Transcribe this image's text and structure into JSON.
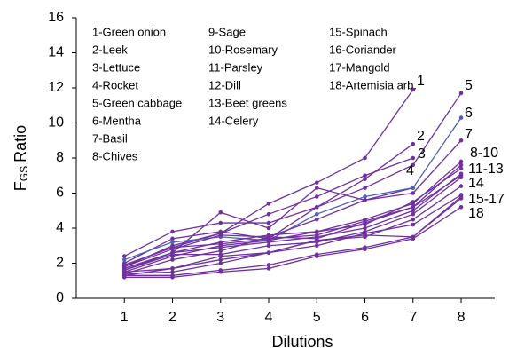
{
  "chart_data": {
    "type": "line",
    "xlabel": "Dilutions",
    "ylabel": "F",
    "ylabel_sub": "GS",
    "ylabel_rest": "Ratio",
    "x": [
      1,
      2,
      3,
      4,
      5,
      6,
      7,
      8
    ],
    "xlim": [
      0,
      8.7
    ],
    "xticks": [
      1,
      2,
      3,
      4,
      5,
      6,
      7,
      8
    ],
    "ylim": [
      0,
      16
    ],
    "yticks": [
      0,
      2,
      4,
      6,
      8,
      10,
      12,
      14,
      16
    ],
    "grid": false,
    "series": [
      {
        "name": "1-Green onion",
        "color": "#7030a0",
        "values": [
          1.8,
          3.0,
          3.7,
          5.4,
          6.6,
          8.0,
          11.9,
          null
        ]
      },
      {
        "name": "2-Leek",
        "color": "#7030a0",
        "values": [
          2.0,
          3.4,
          3.8,
          3.4,
          5.2,
          6.8,
          8.8,
          null
        ]
      },
      {
        "name": "3-Lettuce",
        "color": "#7030a0",
        "values": [
          1.9,
          2.9,
          3.7,
          4.8,
          5.8,
          7.0,
          8.0,
          null
        ]
      },
      {
        "name": "4-Rocket",
        "color": "#7030a0",
        "values": [
          1.7,
          2.6,
          4.9,
          4.0,
          6.3,
          5.6,
          6.3,
          null
        ]
      },
      {
        "name": "5-Green cabbage",
        "color": "#7030a0",
        "values": [
          2.4,
          3.8,
          4.3,
          4.3,
          5.2,
          6.3,
          7.6,
          11.7
        ]
      },
      {
        "name": "6-Mentha",
        "color": "#4f5fb8",
        "values": [
          2.2,
          3.2,
          3.5,
          3.3,
          4.8,
          5.8,
          6.3,
          10.3
        ]
      },
      {
        "name": "7-Basil",
        "color": "#7030a0",
        "values": [
          1.8,
          2.8,
          3.6,
          3.5,
          4.5,
          5.6,
          6.0,
          9.0
        ]
      },
      {
        "name": "8-Chives",
        "color": "#7030a0",
        "values": [
          1.6,
          2.6,
          3.2,
          3.6,
          3.8,
          4.5,
          5.4,
          7.8
        ]
      },
      {
        "name": "9-Sage",
        "color": "#7030a0",
        "values": [
          1.9,
          2.9,
          3.1,
          3.4,
          3.6,
          4.4,
          5.2,
          7.6
        ]
      },
      {
        "name": "10-Rosemary",
        "color": "#7030a0",
        "values": [
          1.5,
          2.4,
          3.0,
          3.3,
          3.8,
          4.2,
          5.5,
          7.4
        ]
      },
      {
        "name": "11-Parsley",
        "color": "#7030a0",
        "values": [
          1.7,
          2.6,
          2.9,
          3.2,
          3.5,
          4.0,
          5.0,
          7.1
        ]
      },
      {
        "name": "12-Dill",
        "color": "#7030a0",
        "values": [
          1.4,
          2.2,
          2.7,
          3.5,
          3.4,
          4.3,
          5.2,
          7.0
        ]
      },
      {
        "name": "13-Beet greens",
        "color": "#7030a0",
        "values": [
          1.6,
          2.5,
          2.5,
          3.0,
          3.2,
          3.8,
          4.8,
          6.9
        ]
      },
      {
        "name": "14-Celery",
        "color": "#7030a0",
        "values": [
          1.5,
          1.7,
          2.4,
          2.6,
          3.3,
          3.5,
          4.5,
          6.4
        ]
      },
      {
        "name": "15-Spinach",
        "color": "#7030a0",
        "values": [
          1.3,
          1.7,
          2.2,
          2.6,
          3.0,
          3.7,
          4.2,
          5.9
        ]
      },
      {
        "name": "16-Coriander",
        "color": "#7030a0",
        "values": [
          1.4,
          1.5,
          2.0,
          2.6,
          3.3,
          3.6,
          3.5,
          5.7
        ]
      },
      {
        "name": "17-Mangold",
        "color": "#7030a0",
        "values": [
          1.3,
          1.3,
          1.6,
          1.9,
          2.5,
          2.9,
          3.5,
          5.8
        ]
      },
      {
        "name": "18-Artemisia arb.",
        "color": "#7030a0",
        "values": [
          1.2,
          1.2,
          1.5,
          1.7,
          2.4,
          2.8,
          3.4,
          5.2
        ]
      }
    ],
    "annotations": [
      "1",
      "2",
      "3",
      "4",
      "5",
      "6",
      "7",
      "8-10",
      "11-13",
      "14",
      "15-17",
      "18"
    ]
  }
}
